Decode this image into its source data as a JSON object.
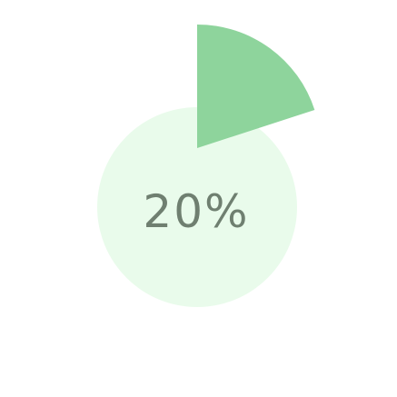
{
  "progress": {
    "value_percent": 20,
    "label": "20%",
    "track_color": "#e9fbeb",
    "fill_color": "#8ed49c",
    "text_color": "#6f7f70"
  }
}
